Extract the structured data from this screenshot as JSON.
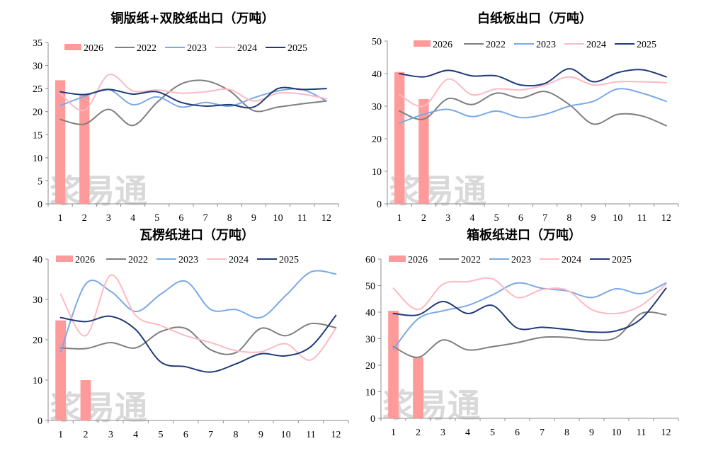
{
  "colors": {
    "2026": "#ff9a9a",
    "2022": "#7f7f7f",
    "2023": "#7aa9e6",
    "2024": "#ffb9c2",
    "2025": "#1f3a7a",
    "axis": "#8c8c8c",
    "watermark": "#d9d9d9"
  },
  "watermark_text": "浆易通",
  "legend_order": [
    "2026",
    "2022",
    "2023",
    "2024",
    "2025"
  ],
  "chart_data": [
    {
      "type": "bar+line",
      "title": "铜版纸+双胶纸出口（万吨）",
      "categories": [
        "1",
        "2",
        "3",
        "4",
        "5",
        "6",
        "7",
        "8",
        "9",
        "10",
        "11",
        "12"
      ],
      "ylim": [
        0,
        35
      ],
      "yticks": [
        0,
        5,
        10,
        15,
        20,
        25,
        30,
        35
      ],
      "grid": false,
      "legend": "top",
      "bar_series": {
        "name": "2026",
        "values": [
          26.8,
          23.8
        ]
      },
      "series": [
        {
          "name": "2022",
          "values": [
            18.3,
            17.3,
            20.5,
            17.0,
            22.0,
            26.0,
            26.7,
            24.5,
            20.2,
            21.0,
            21.7,
            22.3
          ]
        },
        {
          "name": "2023",
          "values": [
            21.3,
            23.3,
            24.8,
            21.5,
            23.2,
            21.0,
            22.0,
            21.2,
            23.0,
            24.5,
            24.8,
            22.3
          ]
        },
        {
          "name": "2024",
          "values": [
            24.0,
            20.3,
            28.0,
            24.5,
            24.7,
            24.0,
            24.3,
            24.8,
            22.3,
            24.0,
            23.8,
            22.8
          ]
        },
        {
          "name": "2025",
          "values": [
            24.3,
            23.7,
            24.8,
            23.8,
            24.3,
            22.0,
            21.2,
            21.5,
            21.0,
            25.0,
            24.8,
            25.0
          ]
        }
      ]
    },
    {
      "type": "bar+line",
      "title": "白纸板出口（万吨）",
      "categories": [
        "1",
        "2",
        "3",
        "4",
        "5",
        "6",
        "7",
        "8",
        "9",
        "10",
        "11",
        "12"
      ],
      "ylim": [
        0,
        50
      ],
      "yticks": [
        0,
        10,
        20,
        30,
        40,
        50
      ],
      "grid": false,
      "legend": "top",
      "bar_series": {
        "name": "2026",
        "values": [
          40.5,
          32.2
        ]
      },
      "series": [
        {
          "name": "2022",
          "values": [
            28.5,
            26.0,
            32.3,
            30.5,
            34.0,
            32.5,
            34.5,
            30.5,
            24.5,
            27.5,
            27.0,
            24.0
          ]
        },
        {
          "name": "2023",
          "values": [
            24.8,
            27.5,
            29.0,
            26.8,
            28.5,
            26.5,
            27.5,
            30.0,
            31.5,
            35.3,
            34.0,
            31.5
          ]
        },
        {
          "name": "2024",
          "values": [
            33.5,
            30.0,
            38.3,
            33.5,
            35.3,
            35.0,
            36.5,
            39.0,
            36.5,
            37.5,
            37.5,
            37.2
          ]
        },
        {
          "name": "2025",
          "values": [
            40.0,
            39.0,
            41.0,
            39.3,
            39.3,
            36.5,
            37.0,
            41.5,
            37.5,
            40.3,
            41.2,
            39.0
          ]
        }
      ]
    },
    {
      "type": "bar+line",
      "title": "瓦楞纸进口（万吨）",
      "categories": [
        "1",
        "2",
        "3",
        "4",
        "5",
        "6",
        "7",
        "8",
        "9",
        "10",
        "11",
        "12"
      ],
      "ylim": [
        0,
        40
      ],
      "yticks": [
        0,
        10,
        20,
        30,
        40
      ],
      "grid": false,
      "legend": "top",
      "bar_series": {
        "name": "2026",
        "values": [
          24.8,
          10.0
        ]
      },
      "series": [
        {
          "name": "2022",
          "values": [
            18.0,
            17.8,
            19.3,
            18.0,
            22.0,
            22.8,
            17.5,
            16.8,
            22.8,
            21.0,
            24.0,
            23.0
          ]
        },
        {
          "name": "2023",
          "values": [
            17.0,
            33.8,
            32.0,
            27.0,
            31.3,
            34.5,
            27.5,
            27.5,
            25.5,
            31.0,
            36.8,
            36.3
          ]
        },
        {
          "name": "2024",
          "values": [
            31.3,
            21.0,
            36.0,
            26.0,
            23.5,
            21.0,
            19.3,
            17.3,
            17.0,
            19.0,
            15.0,
            22.8
          ]
        },
        {
          "name": "2025",
          "values": [
            25.5,
            24.5,
            25.8,
            22.5,
            14.5,
            13.3,
            12.0,
            14.0,
            16.5,
            16.0,
            18.3,
            26.0
          ]
        }
      ]
    },
    {
      "type": "bar+line",
      "title": "箱板纸进口（万吨）",
      "categories": [
        "1",
        "2",
        "3",
        "4",
        "5",
        "6",
        "7",
        "8",
        "9",
        "10",
        "11",
        "12"
      ],
      "ylim": [
        0,
        60
      ],
      "yticks": [
        0,
        10,
        20,
        30,
        40,
        50,
        60
      ],
      "grid": false,
      "legend": "top",
      "bar_series": {
        "name": "2026",
        "values": [
          40.5,
          23.0
        ]
      },
      "series": [
        {
          "name": "2022",
          "values": [
            27.0,
            23.0,
            29.5,
            25.8,
            27.0,
            28.5,
            30.5,
            30.5,
            29.5,
            30.5,
            39.5,
            39.0
          ]
        },
        {
          "name": "2023",
          "values": [
            26.0,
            37.5,
            40.5,
            42.5,
            46.5,
            51.0,
            49.0,
            48.0,
            45.5,
            48.8,
            47.0,
            51.0
          ]
        },
        {
          "name": "2024",
          "values": [
            49.0,
            41.0,
            50.5,
            51.5,
            52.5,
            45.5,
            48.5,
            48.3,
            41.0,
            39.5,
            42.5,
            50.5
          ]
        },
        {
          "name": "2025",
          "values": [
            39.5,
            39.0,
            44.0,
            39.5,
            42.5,
            34.0,
            34.3,
            33.5,
            32.5,
            33.0,
            37.5,
            49.0
          ]
        }
      ]
    }
  ]
}
